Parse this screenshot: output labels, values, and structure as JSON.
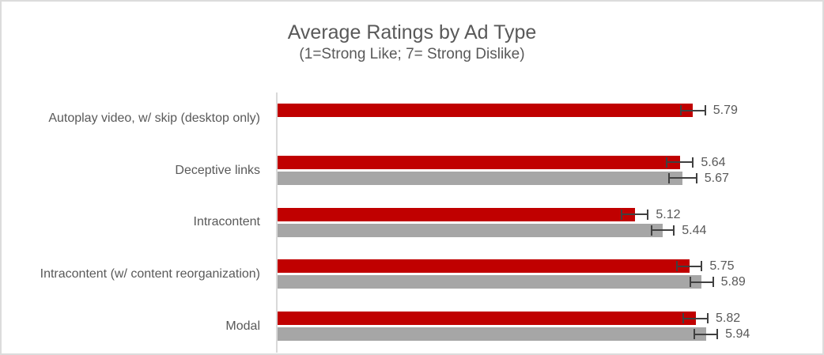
{
  "chart": {
    "title": "Average Ratings by Ad Type",
    "subtitle": "(1=Strong Like; 7= Strong Dislike)"
  },
  "chart_data": {
    "type": "bar",
    "orientation": "horizontal",
    "title": "Average Ratings by Ad Type",
    "subtitle": "(1=Strong Like; 7= Strong Dislike)",
    "categories": [
      "Autoplay video, w/ skip (desktop only)",
      "Deceptive links",
      "Intracontent",
      "Intracontent (w/ content reorganization)",
      "Modal"
    ],
    "series": [
      {
        "name": "red-series",
        "color": "#c00000",
        "values": [
          5.79,
          5.64,
          5.12,
          5.75,
          5.82
        ],
        "errors": [
          0.15,
          0.16,
          0.16,
          0.15,
          0.15
        ]
      },
      {
        "name": "gray-series",
        "color": "#a6a6a6",
        "values": [
          null,
          5.67,
          5.44,
          5.89,
          5.94
        ],
        "errors": [
          null,
          0.17,
          0.14,
          0.14,
          0.14
        ]
      }
    ],
    "data_labels": {
      "red-series": [
        "5.79",
        "5.64",
        "5.12",
        "5.75",
        "5.82"
      ],
      "gray-series": [
        null,
        "5.67",
        "5.44",
        "5.89",
        "5.94"
      ]
    },
    "xlim": [
      1,
      7
    ],
    "xlabel": "",
    "ylabel": "",
    "grid": false,
    "legend": "none",
    "error_bars": true,
    "axis_ticks_visible": false
  },
  "colors": {
    "red_bar": "#c00000",
    "gray_bar": "#a6a6a6",
    "error_bar": "#404040",
    "axis_line": "#d9d9d9",
    "text": "#595959",
    "frame_border": "#dcdcdc"
  }
}
